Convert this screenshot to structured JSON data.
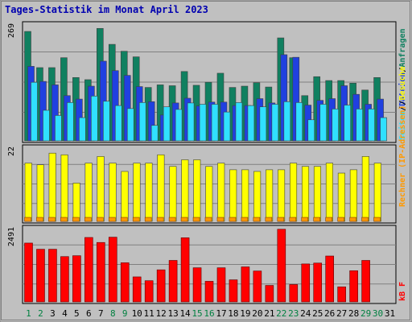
{
  "page": {
    "title": "Tages-Statistik im Monat April 2023"
  },
  "colors": {
    "frame": "#c0c0c0",
    "title": "#0000b0",
    "panel_bg": "#c0c0c0",
    "weekday_label": "#008040",
    "weekend_label": "#000000",
    "hits": "#108060",
    "files": "#2040e0",
    "pages": "#30e0ff",
    "visits": "#ffff00",
    "sites": "#ff9900",
    "kbytes": "#ff0000"
  },
  "chart_data": [
    {
      "type": "bar",
      "panel": "top",
      "ymax_label": "269",
      "ylim": [
        0,
        269
      ],
      "legend_labels": [
        "Anfragen",
        "Dateien",
        "Seiten"
      ],
      "legend_placement": "right",
      "series": [
        {
          "name": "Anfragen",
          "color_key": "hits",
          "values": [
            254,
            170,
            170,
            193,
            147,
            142,
            261,
            224,
            208,
            195,
            124,
            130,
            128,
            161,
            129,
            136,
            157,
            124,
            127,
            135,
            125,
            239,
            193,
            105,
            149,
            140,
            140,
            134,
            118,
            147,
            0
          ]
        },
        {
          "name": "Dateien",
          "color_key": "files",
          "values": [
            173,
            138,
            130,
            105,
            97,
            127,
            185,
            163,
            152,
            126,
            91,
            60,
            88,
            99,
            81,
            90,
            90,
            82,
            82,
            98,
            88,
            200,
            194,
            83,
            94,
            98,
            128,
            108,
            85,
            97,
            0
          ]
        },
        {
          "name": "Seiten",
          "color_key": "pages",
          "values": [
            136,
            71,
            59,
            89,
            54,
            104,
            92,
            82,
            75,
            89,
            36,
            79,
            73,
            88,
            85,
            85,
            67,
            89,
            82,
            79,
            85,
            91,
            89,
            49,
            85,
            74,
            83,
            74,
            74,
            54,
            0
          ]
        }
      ]
    },
    {
      "type": "bar",
      "panel": "middle",
      "ymax_label": "22",
      "ylim": [
        0,
        22
      ],
      "legend_labels": [
        "Besuche",
        "Rechner (IP-Adressen)"
      ],
      "legend_placement": "right",
      "series": [
        {
          "name": "Besuche",
          "color_key": "visits",
          "values": [
            17.5,
            17.0,
            20.5,
            20.0,
            11.5,
            17.5,
            19.5,
            17.5,
            15.0,
            17.5,
            17.5,
            20.0,
            16.5,
            18.5,
            18.5,
            16.5,
            17.5,
            15.5,
            15.5,
            15.0,
            15.5,
            15.5,
            17.5,
            16.5,
            16.5,
            17.5,
            14.5,
            15.5,
            19.5,
            17.5,
            0
          ]
        },
        {
          "name": "Rechner (IP-Adressen)",
          "color_key": "sites",
          "values": [
            1.2,
            1.2,
            1.2,
            1.2,
            1.2,
            1.2,
            1.2,
            1.2,
            1.2,
            1.2,
            1.2,
            1.2,
            1.2,
            1.2,
            1.2,
            1.2,
            1.2,
            1.2,
            1.2,
            1.2,
            1.2,
            1.2,
            1.2,
            1.2,
            1.2,
            1.2,
            1.2,
            1.2,
            1.2,
            1.2,
            0
          ]
        }
      ]
    },
    {
      "type": "bar",
      "panel": "bottom",
      "ymax_label": "2491",
      "ylim": [
        0,
        2491
      ],
      "legend_labels": [
        "kB F"
      ],
      "legend_placement": "right",
      "series": [
        {
          "name": "kB F",
          "color_key": "kbytes",
          "values": [
            2000,
            1790,
            1790,
            1540,
            1570,
            2190,
            2020,
            2200,
            1330,
            850,
            720,
            1090,
            1410,
            2180,
            1160,
            700,
            1160,
            750,
            1190,
            1050,
            560,
            2470,
            590,
            1290,
            1320,
            1560,
            510,
            1060,
            1410,
            0,
            0
          ]
        }
      ]
    }
  ],
  "x_axis": {
    "labels": [
      "1",
      "2",
      "3",
      "4",
      "5",
      "6",
      "7",
      "8",
      "9",
      "10",
      "11",
      "12",
      "13",
      "14",
      "15",
      "16",
      "17",
      "18",
      "19",
      "20",
      "21",
      "22",
      "23",
      "24",
      "25",
      "26",
      "27",
      "28",
      "29",
      "30",
      "31"
    ],
    "weekend_days": [
      "1",
      "8",
      "15",
      "22",
      "29",
      "2",
      "9",
      "16",
      "23",
      "30"
    ]
  }
}
